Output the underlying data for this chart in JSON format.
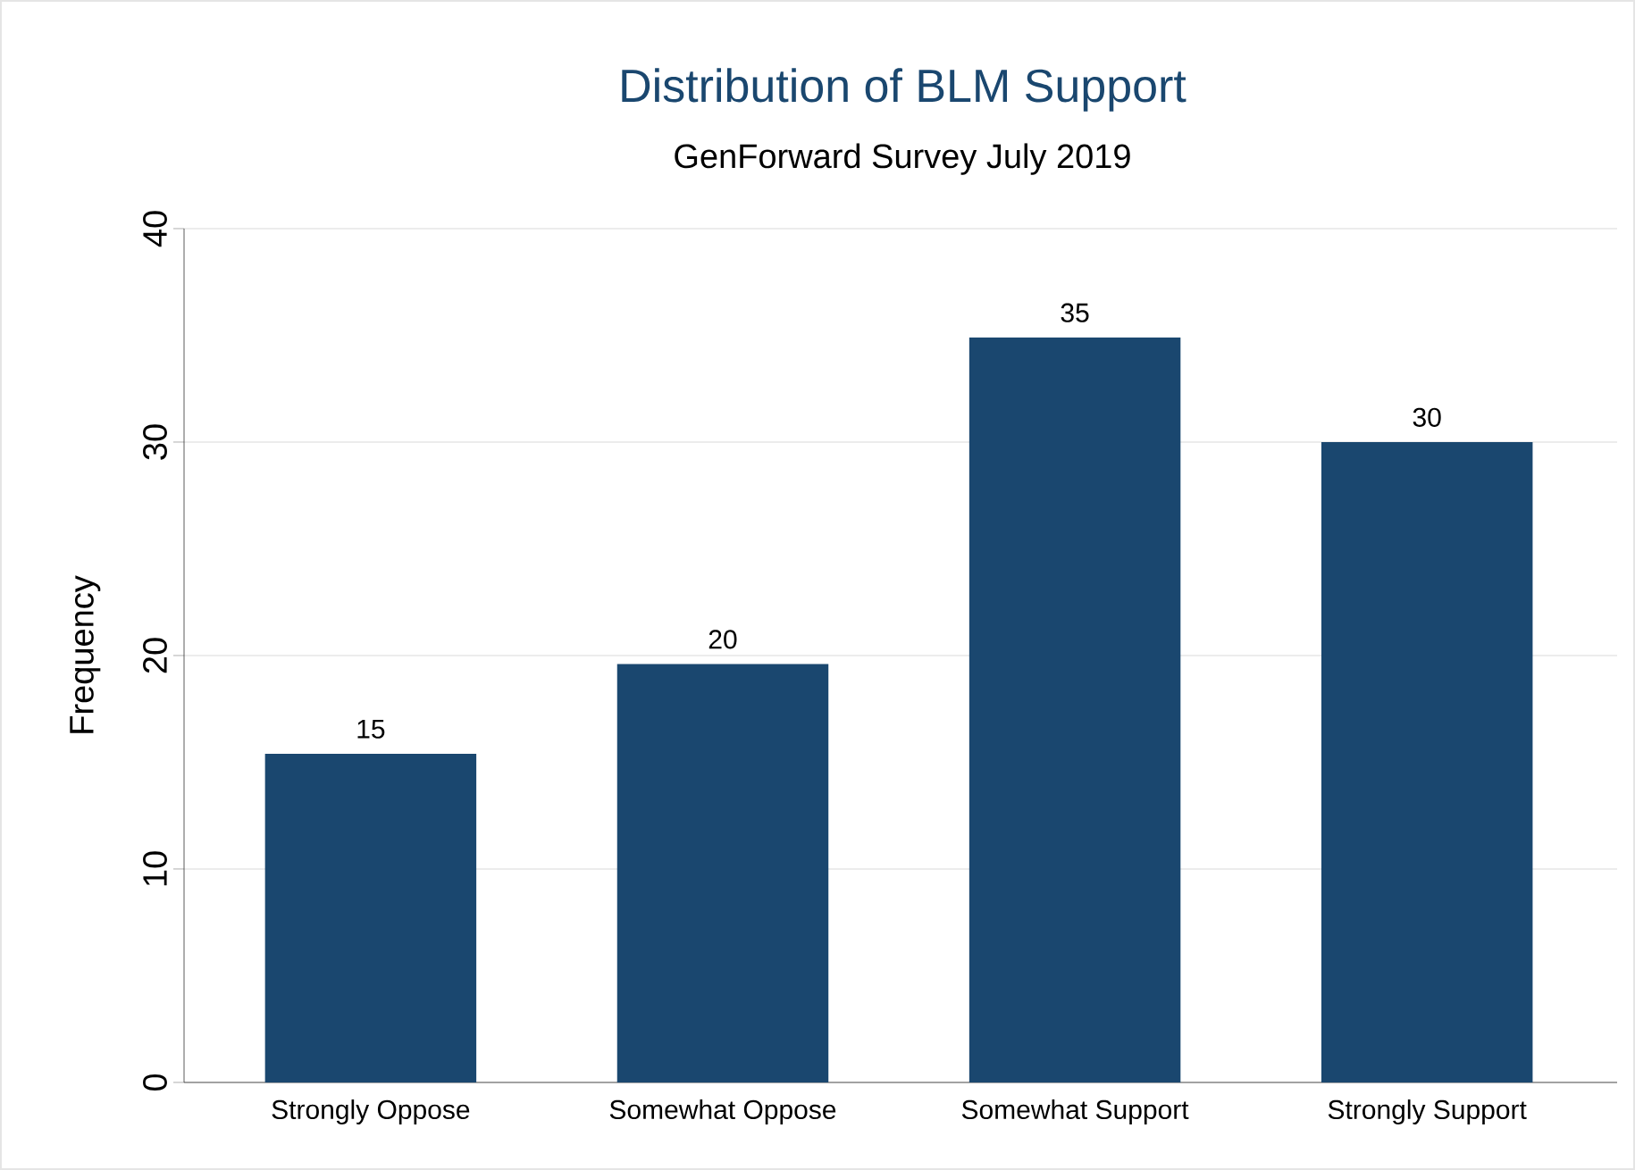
{
  "chart_data": {
    "type": "bar",
    "title": "Distribution of BLM Support",
    "subtitle": "GenForward Survey July 2019",
    "ylabel": "Frequency",
    "categories": [
      "Strongly Oppose",
      "Somewhat Oppose",
      "Somewhat Support",
      "Strongly Support"
    ],
    "values": [
      15.4,
      19.6,
      34.9,
      30.0
    ],
    "value_labels": [
      "15",
      "20",
      "35",
      "30"
    ],
    "color": "#1a476f",
    "ylim": [
      0,
      40
    ],
    "yticks": [
      0,
      10,
      20,
      30,
      40
    ],
    "grid": "y"
  }
}
